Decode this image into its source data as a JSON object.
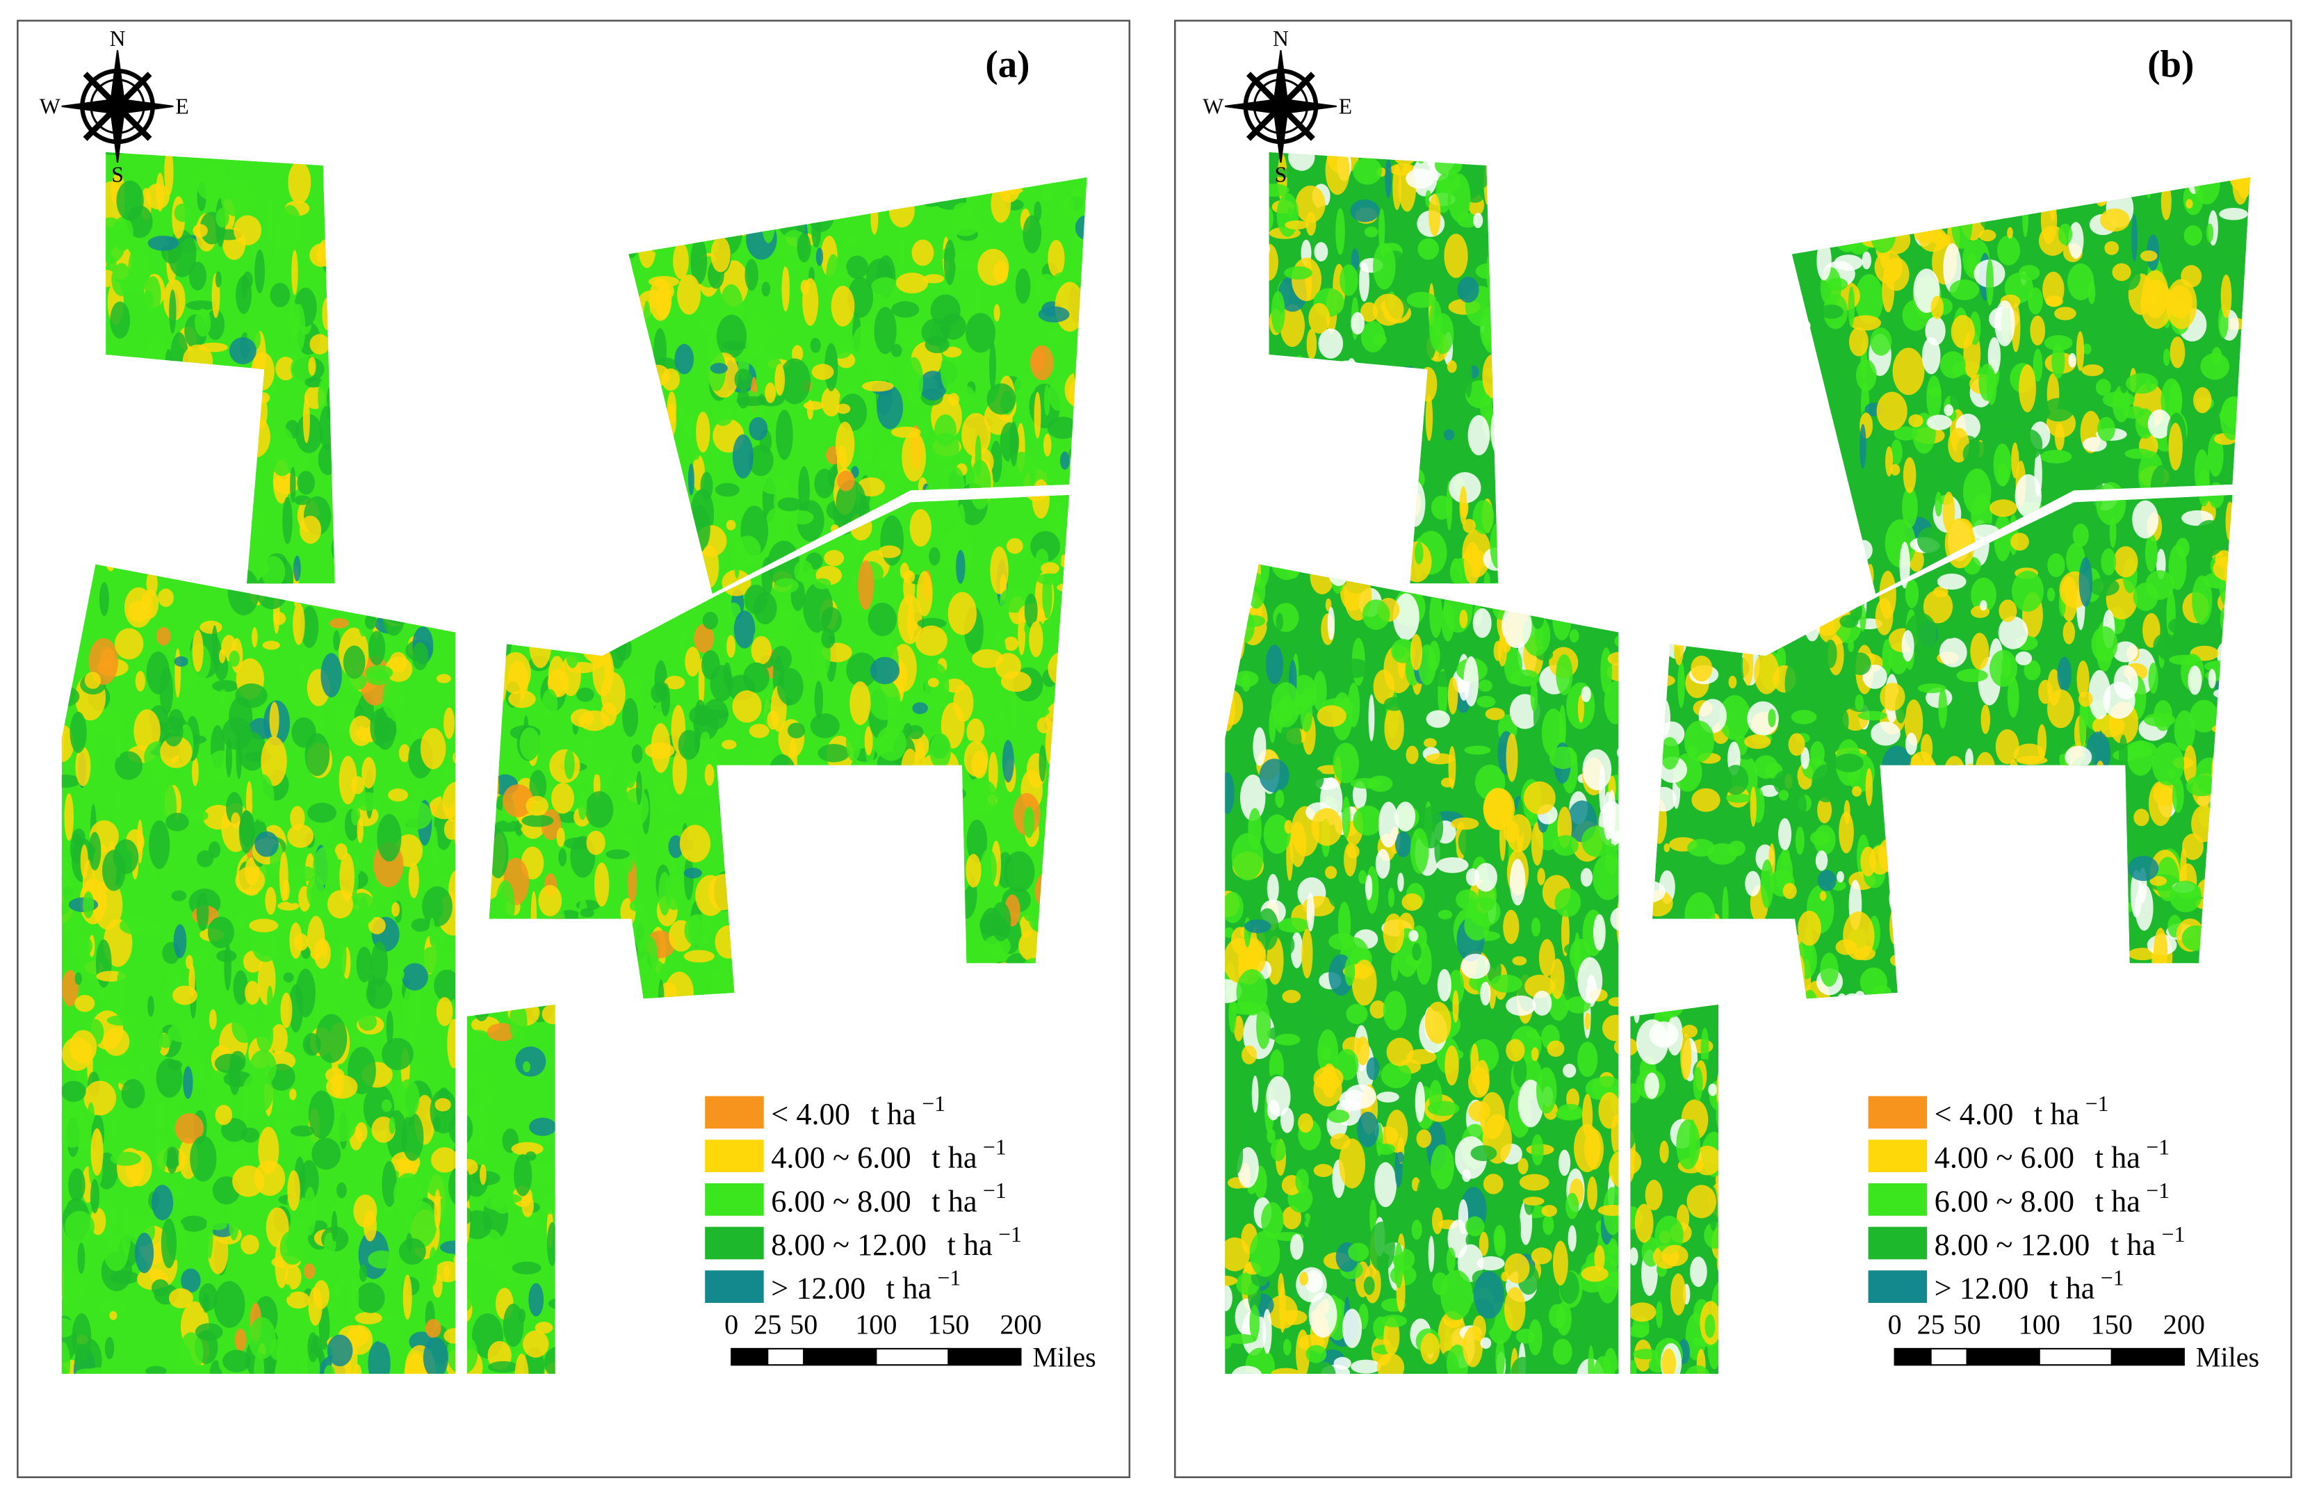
{
  "panels": [
    {
      "label": "(a)",
      "compass": {
        "n": "N",
        "e": "E",
        "s": "S",
        "w": "W"
      },
      "legend": [
        {
          "range": "< 4.00",
          "unit": "t ha",
          "exponent": "−1",
          "color": "#f7941d"
        },
        {
          "range": "4.00 ~ 6.00",
          "unit": "t ha",
          "exponent": "−1",
          "color": "#ffd80a"
        },
        {
          "range": "6.00 ~ 8.00",
          "unit": "t ha",
          "exponent": "−1",
          "color": "#3ce61e"
        },
        {
          "range": "8.00 ~ 12.00",
          "unit": "t ha",
          "exponent": "−1",
          "color": "#1db82c"
        },
        {
          "range": "> 12.00",
          "unit": "t ha",
          "exponent": "−1",
          "color": "#13898e"
        }
      ],
      "scale_bar": {
        "ticks": [
          0,
          25,
          50,
          100,
          150,
          200
        ],
        "unit": "Miles"
      }
    },
    {
      "label": "(b)",
      "compass": {
        "n": "N",
        "e": "E",
        "s": "S",
        "w": "W"
      },
      "legend": [
        {
          "range": "< 4.00",
          "unit": "t ha",
          "exponent": "−1",
          "color": "#f7941d"
        },
        {
          "range": "4.00 ~ 6.00",
          "unit": "t ha",
          "exponent": "−1",
          "color": "#ffd80a"
        },
        {
          "range": "6.00 ~ 8.00",
          "unit": "t ha",
          "exponent": "−1",
          "color": "#3ce61e"
        },
        {
          "range": "8.00 ~ 12.00",
          "unit": "t ha",
          "exponent": "−1",
          "color": "#1db82c"
        },
        {
          "range": "> 12.00",
          "unit": "t ha",
          "exponent": "−1",
          "color": "#13898e"
        }
      ],
      "scale_bar": {
        "ticks": [
          0,
          25,
          50,
          100,
          150,
          200
        ],
        "unit": "Miles"
      }
    }
  ]
}
